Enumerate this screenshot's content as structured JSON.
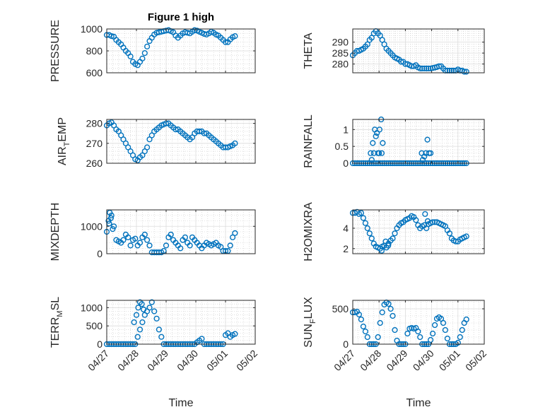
{
  "figure_title": "Figure 1 high",
  "colors": {
    "marker": "#0072BD",
    "axis": "#262626",
    "grid": "#dcdcdc",
    "minor_grid": "#c8c8c8"
  },
  "chart_data": [
    {
      "type": "scatter",
      "id": "pressure",
      "ylabel": "PRESSURE",
      "ylabel_sub": "",
      "ylabel_tail": "",
      "ylim": [
        600,
        1000
      ],
      "yticks": [
        600,
        800,
        1000
      ],
      "ytick_labels": [
        "600",
        "800",
        "1000"
      ],
      "xlim": [
        0,
        5
      ],
      "xticks": [
        0,
        1,
        2,
        3,
        4,
        5
      ],
      "xtick_labels": [
        "04/27",
        "04/28",
        "04/29",
        "04/30",
        "05/01",
        "05/02"
      ],
      "grid": true,
      "minor_grid": true,
      "show_xticklabels": false,
      "title": "Figure 1 high",
      "x": [
        0.0,
        0.08,
        0.16,
        0.24,
        0.32,
        0.4,
        0.48,
        0.56,
        0.64,
        0.72,
        0.8,
        0.88,
        0.96,
        1.04,
        1.12,
        1.2,
        1.28,
        1.36,
        1.44,
        1.52,
        1.6,
        1.68,
        1.76,
        1.84,
        1.92,
        2.0,
        2.08,
        2.16,
        2.24,
        2.32,
        2.4,
        2.48,
        2.56,
        2.64,
        2.72,
        2.8,
        2.88,
        2.96,
        3.04,
        3.12,
        3.2,
        3.28,
        3.36,
        3.44,
        3.52,
        3.6,
        3.68,
        3.76,
        3.84,
        3.92,
        4.0,
        4.08,
        4.16,
        4.24,
        4.32
      ],
      "y": [
        945,
        945,
        935,
        930,
        900,
        880,
        860,
        830,
        800,
        780,
        750,
        700,
        680,
        670,
        700,
        730,
        780,
        840,
        890,
        920,
        950,
        965,
        970,
        975,
        980,
        985,
        990,
        980,
        970,
        940,
        920,
        940,
        960,
        970,
        965,
        960,
        975,
        990,
        985,
        975,
        965,
        955,
        950,
        960,
        975,
        965,
        950,
        940,
        920,
        900,
        880,
        880,
        905,
        925,
        935
      ]
    },
    {
      "type": "scatter",
      "id": "theta",
      "ylabel": "THETA",
      "ylabel_sub": "",
      "ylabel_tail": "",
      "ylim": [
        276,
        296
      ],
      "yticks": [
        280,
        285,
        290
      ],
      "ytick_labels": [
        "280",
        "285",
        "290"
      ],
      "xlim": [
        0,
        5
      ],
      "xticks": [
        0,
        1,
        2,
        3,
        4,
        5
      ],
      "xtick_labels": [
        "04/27",
        "04/28",
        "04/29",
        "04/30",
        "05/01",
        "05/02"
      ],
      "grid": true,
      "minor_grid": true,
      "show_xticklabels": false,
      "title": "",
      "x": [
        0.0,
        0.08,
        0.16,
        0.24,
        0.32,
        0.4,
        0.48,
        0.56,
        0.64,
        0.72,
        0.8,
        0.88,
        0.96,
        1.04,
        1.12,
        1.2,
        1.28,
        1.36,
        1.44,
        1.52,
        1.6,
        1.68,
        1.76,
        1.84,
        1.92,
        2.0,
        2.08,
        2.16,
        2.24,
        2.32,
        2.4,
        2.48,
        2.56,
        2.64,
        2.72,
        2.8,
        2.88,
        2.96,
        3.04,
        3.12,
        3.2,
        3.28,
        3.36,
        3.44,
        3.52,
        3.6,
        3.68,
        3.76,
        3.84,
        3.92,
        4.0,
        4.08,
        4.16,
        4.24,
        4.32
      ],
      "y": [
        284,
        285,
        286,
        286,
        286.5,
        287,
        288,
        289,
        291,
        292,
        294,
        295,
        294,
        293,
        291,
        289,
        287,
        286,
        285,
        284,
        283,
        282.5,
        282,
        281,
        281,
        280,
        280,
        279.5,
        279,
        279,
        279.5,
        278.5,
        278,
        278,
        278,
        278,
        278,
        278,
        278.2,
        278.4,
        278.6,
        279,
        279,
        278,
        277,
        277,
        277,
        277,
        277,
        277,
        277.5,
        277,
        277,
        276.5,
        276.5
      ]
    },
    {
      "type": "scatter",
      "id": "air_temp",
      "ylabel": "AIR",
      "ylabel_sub": "T",
      "ylabel_tail": "EMP",
      "ylim": [
        260,
        282
      ],
      "yticks": [
        260,
        270,
        280
      ],
      "ytick_labels": [
        "260",
        "270",
        "280"
      ],
      "xlim": [
        0,
        5
      ],
      "xticks": [
        0,
        1,
        2,
        3,
        4,
        5
      ],
      "xtick_labels": [
        "04/27",
        "04/28",
        "04/29",
        "04/30",
        "05/01",
        "05/02"
      ],
      "grid": true,
      "minor_grid": true,
      "show_xticklabels": false,
      "title": "",
      "x": [
        0.0,
        0.08,
        0.16,
        0.24,
        0.32,
        0.4,
        0.48,
        0.56,
        0.64,
        0.72,
        0.8,
        0.88,
        0.96,
        1.04,
        1.12,
        1.2,
        1.28,
        1.36,
        1.44,
        1.52,
        1.6,
        1.68,
        1.76,
        1.84,
        1.92,
        2.0,
        2.08,
        2.16,
        2.24,
        2.32,
        2.4,
        2.48,
        2.56,
        2.64,
        2.72,
        2.8,
        2.88,
        2.96,
        3.04,
        3.12,
        3.2,
        3.28,
        3.36,
        3.44,
        3.52,
        3.6,
        3.68,
        3.76,
        3.84,
        3.92,
        4.0,
        4.08,
        4.16,
        4.24,
        4.32
      ],
      "y": [
        279,
        280,
        280.5,
        279,
        277,
        276,
        274,
        272,
        270,
        268,
        266,
        264,
        262,
        261.5,
        263,
        264,
        266,
        268,
        272,
        274,
        276,
        277,
        278,
        279,
        279.5,
        280,
        280,
        279,
        278,
        277,
        277,
        276,
        275,
        274,
        273,
        272,
        273,
        275,
        276,
        276,
        276,
        275,
        275,
        274,
        273,
        272,
        271,
        270,
        269,
        268,
        268,
        268,
        268.5,
        269,
        270
      ]
    },
    {
      "type": "scatter",
      "id": "rainfall",
      "ylabel": "RAINFALL",
      "ylabel_sub": "",
      "ylabel_tail": "",
      "ylim": [
        0,
        1.3
      ],
      "yticks": [
        0,
        0.5,
        1
      ],
      "ytick_labels": [
        "0",
        "0.5",
        "1"
      ],
      "xlim": [
        0,
        5
      ],
      "xticks": [
        0,
        1,
        2,
        3,
        4,
        5
      ],
      "xtick_labels": [
        "04/27",
        "04/28",
        "04/29",
        "04/30",
        "05/01",
        "05/02"
      ],
      "grid": true,
      "minor_grid": true,
      "show_xticklabels": false,
      "title": "",
      "x": [
        0.0,
        0.08,
        0.16,
        0.24,
        0.32,
        0.4,
        0.48,
        0.56,
        0.64,
        0.72,
        0.8,
        0.88,
        0.96,
        1.04,
        1.12,
        1.2,
        1.28,
        1.36,
        1.44,
        1.52,
        1.6,
        1.68,
        1.76,
        1.84,
        1.92,
        2.0,
        2.08,
        2.16,
        2.24,
        2.32,
        2.4,
        2.48,
        2.56,
        2.64,
        2.72,
        2.8,
        2.88,
        2.96,
        3.04,
        3.12,
        3.2,
        3.28,
        3.36,
        3.44,
        3.52,
        3.6,
        3.68,
        3.76,
        3.84,
        3.92,
        4.0,
        4.08,
        4.16,
        4.24,
        4.32,
        0.68,
        0.76,
        0.84,
        0.92,
        1.0,
        1.1,
        0.72,
        0.8,
        0.88,
        0.96,
        1.02,
        1.08,
        1.14,
        2.62,
        2.66,
        2.72,
        2.78,
        2.84,
        2.9,
        2.96
      ],
      "y": [
        0,
        0,
        0,
        0,
        0,
        0,
        0,
        0,
        0,
        0,
        0,
        0,
        0,
        0,
        0,
        0,
        0,
        0,
        0,
        0,
        0,
        0,
        0,
        0,
        0,
        0,
        0,
        0,
        0,
        0,
        0,
        0,
        0,
        0,
        0,
        0,
        0,
        0,
        0,
        0,
        0,
        0,
        0,
        0,
        0,
        0,
        0,
        0,
        0,
        0,
        0,
        0,
        0,
        0,
        0,
        0.3,
        0.6,
        1.0,
        0.9,
        0.3,
        0.3,
        0.1,
        0.3,
        0.8,
        0.3,
        1.0,
        1.3,
        0.6,
        0.3,
        0.1,
        0.2,
        0.3,
        0.7,
        0.3,
        0.3
      ]
    },
    {
      "type": "scatter",
      "id": "mixdepth",
      "ylabel": "MIXDEPTH",
      "ylabel_sub": "",
      "ylabel_tail": "",
      "ylim": [
        0,
        1600
      ],
      "yticks": [
        0,
        1000
      ],
      "ytick_labels": [
        "0",
        "1000"
      ],
      "xlim": [
        0,
        5
      ],
      "xticks": [
        0,
        1,
        2,
        3,
        4,
        5
      ],
      "xtick_labels": [
        "04/27",
        "04/28",
        "04/29",
        "04/30",
        "05/01",
        "05/02"
      ],
      "grid": true,
      "minor_grid": true,
      "show_xticklabels": false,
      "title": "",
      "x": [
        0.0,
        0.08,
        0.16,
        0.24,
        0.32,
        0.4,
        0.48,
        0.56,
        0.64,
        0.72,
        0.8,
        0.88,
        0.96,
        1.04,
        1.12,
        1.2,
        1.28,
        1.36,
        1.44,
        1.52,
        1.6,
        1.68,
        1.76,
        1.84,
        1.92,
        2.0,
        2.08,
        2.16,
        2.24,
        2.32,
        2.4,
        2.48,
        2.56,
        2.64,
        2.72,
        2.8,
        2.88,
        2.96,
        3.04,
        3.12,
        3.2,
        3.28,
        3.36,
        3.44,
        3.52,
        3.6,
        3.68,
        3.76,
        3.84,
        3.92,
        4.0,
        4.08,
        4.16,
        4.24,
        4.32,
        0.06,
        0.1,
        0.14,
        0.2
      ],
      "y": [
        800,
        1100,
        1400,
        1000,
        500,
        450,
        400,
        500,
        700,
        600,
        300,
        500,
        550,
        300,
        400,
        600,
        700,
        500,
        300,
        50,
        50,
        50,
        50,
        50,
        100,
        300,
        600,
        700,
        500,
        400,
        300,
        200,
        500,
        600,
        400,
        300,
        600,
        500,
        400,
        300,
        200,
        300,
        400,
        350,
        300,
        350,
        400,
        300,
        250,
        100,
        100,
        100,
        300,
        600,
        750,
        1200,
        1500,
        1300,
        900
      ]
    },
    {
      "type": "scatter",
      "id": "h2omixra",
      "ylabel": "H2OMIXRA",
      "ylabel_sub": "",
      "ylabel_tail": "",
      "ylim": [
        1.5,
        5.8
      ],
      "yticks": [
        2,
        4
      ],
      "ytick_labels": [
        "2",
        "4"
      ],
      "xlim": [
        0,
        5
      ],
      "xticks": [
        0,
        1,
        2,
        3,
        4,
        5
      ],
      "xtick_labels": [
        "04/27",
        "04/28",
        "04/29",
        "04/30",
        "05/01",
        "05/02"
      ],
      "grid": true,
      "minor_grid": true,
      "show_xticklabels": false,
      "title": "",
      "x": [
        0.0,
        0.08,
        0.16,
        0.24,
        0.32,
        0.4,
        0.48,
        0.56,
        0.64,
        0.72,
        0.8,
        0.88,
        0.96,
        1.04,
        1.12,
        1.2,
        1.28,
        1.36,
        1.44,
        1.52,
        1.6,
        1.68,
        1.76,
        1.84,
        1.92,
        2.0,
        2.08,
        2.16,
        2.24,
        2.32,
        2.4,
        2.48,
        2.56,
        2.64,
        2.72,
        2.8,
        2.88,
        2.96,
        3.04,
        3.12,
        3.2,
        3.28,
        3.36,
        3.44,
        3.52,
        3.6,
        3.68,
        3.76,
        3.84,
        3.92,
        4.0,
        4.08,
        4.16,
        4.24,
        4.32,
        1.1,
        1.25,
        1.35,
        2.75,
        2.85
      ],
      "y": [
        5.5,
        5.5,
        5.6,
        5.4,
        5.5,
        5.0,
        4.5,
        4.0,
        3.5,
        3.0,
        2.5,
        2.2,
        2.1,
        2.0,
        2.2,
        2.3,
        2.1,
        2.5,
        2.8,
        3.0,
        3.5,
        4.0,
        4.3,
        4.5,
        4.6,
        4.8,
        4.9,
        5.0,
        5.2,
        5.1,
        4.8,
        4.3,
        4.0,
        4.2,
        4.3,
        4.0,
        4.4,
        4.5,
        4.6,
        4.6,
        4.6,
        4.5,
        4.4,
        4.3,
        4.2,
        3.8,
        3.5,
        3.0,
        2.8,
        2.7,
        2.7,
        2.9,
        3.0,
        3.1,
        3.2,
        1.8,
        2.7,
        2.3,
        5.4,
        4.7
      ]
    },
    {
      "type": "scatter",
      "id": "terr_msl",
      "ylabel": "TERR",
      "ylabel_sub": "M",
      "ylabel_tail": "SL",
      "ylim": [
        0,
        1200
      ],
      "yticks": [
        0,
        500,
        1000
      ],
      "ytick_labels": [
        "0",
        "500",
        "1000"
      ],
      "xlim": [
        0,
        5
      ],
      "xticks": [
        0,
        1,
        2,
        3,
        4,
        5
      ],
      "xtick_labels": [
        "04/27",
        "04/28",
        "04/29",
        "04/30",
        "05/01",
        "05/02"
      ],
      "grid": true,
      "minor_grid": true,
      "show_xticklabels": true,
      "title": "",
      "xlabel": "Time",
      "x": [
        0.0,
        0.08,
        0.16,
        0.24,
        0.32,
        0.4,
        0.48,
        0.56,
        0.64,
        0.72,
        0.8,
        0.88,
        0.96,
        1.04,
        1.12,
        1.2,
        1.28,
        1.36,
        1.44,
        1.52,
        1.6,
        1.68,
        1.76,
        1.84,
        1.92,
        2.0,
        2.08,
        2.16,
        2.24,
        2.32,
        2.4,
        2.48,
        2.56,
        2.64,
        2.72,
        2.8,
        2.88,
        2.96,
        3.04,
        3.12,
        3.2,
        3.28,
        3.36,
        3.44,
        3.52,
        3.6,
        3.68,
        3.76,
        3.84,
        3.92,
        4.0,
        4.08,
        4.16,
        4.24,
        4.32,
        0.92,
        1.0,
        1.06,
        1.12,
        1.18,
        1.24
      ],
      "y": [
        0,
        0,
        0,
        0,
        0,
        0,
        0,
        0,
        0,
        0,
        0,
        0,
        0,
        200,
        400,
        600,
        800,
        900,
        1000,
        1150,
        900,
        700,
        400,
        200,
        0,
        0,
        0,
        0,
        0,
        0,
        0,
        0,
        0,
        0,
        0,
        0,
        0,
        0,
        50,
        100,
        150,
        0,
        0,
        0,
        0,
        0,
        0,
        0,
        0,
        0,
        250,
        300,
        200,
        250,
        280,
        600,
        800,
        1000,
        1150,
        1100,
        950
      ]
    },
    {
      "type": "scatter",
      "id": "sun_flux",
      "ylabel": "SUN",
      "ylabel_sub": "F",
      "ylabel_tail": "LUX",
      "ylim": [
        0,
        620
      ],
      "yticks": [
        0,
        500
      ],
      "ytick_labels": [
        "0",
        "500"
      ],
      "xlim": [
        0,
        5
      ],
      "xticks": [
        0,
        1,
        2,
        3,
        4,
        5
      ],
      "xtick_labels": [
        "04/27",
        "04/28",
        "04/29",
        "04/30",
        "05/01",
        "05/02"
      ],
      "grid": true,
      "minor_grid": true,
      "show_xticklabels": true,
      "title": "",
      "xlabel": "Time",
      "x": [
        0.0,
        0.08,
        0.16,
        0.24,
        0.32,
        0.4,
        0.48,
        0.56,
        0.64,
        0.72,
        0.8,
        0.88,
        0.96,
        1.04,
        1.12,
        1.2,
        1.28,
        1.36,
        1.44,
        1.52,
        1.6,
        1.68,
        1.76,
        1.84,
        1.92,
        2.0,
        2.08,
        2.16,
        2.24,
        2.32,
        2.4,
        2.48,
        2.56,
        2.64,
        2.72,
        2.8,
        2.88,
        2.96,
        3.04,
        3.12,
        3.2,
        3.28,
        3.36,
        3.44,
        3.52,
        3.6,
        3.68,
        3.76,
        3.84,
        3.92,
        4.0,
        4.08,
        4.16,
        4.24,
        4.32
      ],
      "y": [
        450,
        450,
        460,
        420,
        350,
        250,
        180,
        100,
        0,
        0,
        0,
        0,
        100,
        300,
        450,
        560,
        590,
        570,
        500,
        400,
        200,
        50,
        0,
        0,
        0,
        0,
        150,
        220,
        230,
        220,
        230,
        180,
        100,
        0,
        0,
        0,
        0,
        60,
        150,
        270,
        360,
        380,
        360,
        300,
        200,
        80,
        0,
        0,
        0,
        0,
        20,
        100,
        200,
        300,
        350
      ]
    }
  ]
}
